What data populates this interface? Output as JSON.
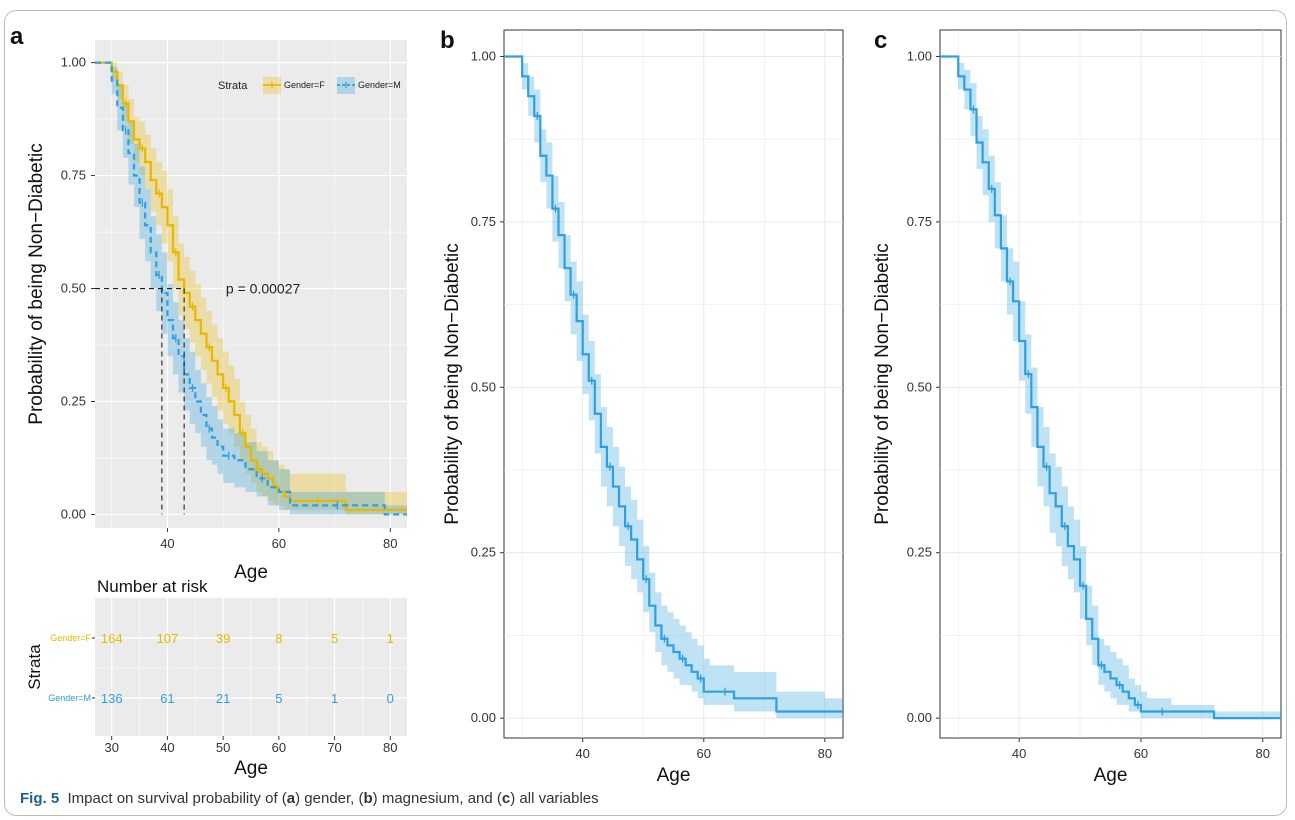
{
  "caption": {
    "fig": "Fig. 5",
    "p1": "Impact on survival probability of (",
    "a": "a",
    "p2": ") gender, (",
    "b": "b",
    "p3": ") magnesium, and (",
    "c": "c",
    "p4": ") all variables"
  },
  "panels": {
    "a": {
      "letter": "a"
    },
    "b": {
      "letter": "b"
    },
    "c": {
      "letter": "c"
    }
  },
  "risk_table": {
    "title": "Number at risk",
    "ylabel": "Strata",
    "xlabel": "Age",
    "x_ticks": [
      30,
      40,
      50,
      60,
      70,
      80
    ],
    "x_tick_labels": [
      "30",
      "40",
      "50",
      "60",
      "70",
      "80"
    ],
    "rows": [
      {
        "label": "Gender=F",
        "color": "#E7B800",
        "values": [
          "164",
          "107",
          "39",
          "8",
          "5",
          "1"
        ]
      },
      {
        "label": "Gender=M",
        "color": "#2E9FDF",
        "values": [
          "136",
          "61",
          "21",
          "5",
          "1",
          "0"
        ]
      }
    ]
  },
  "chart_data": [
    {
      "type": "line",
      "panel": "a",
      "xlabel": "Age",
      "ylabel": "Probability of being Non−Diabetic",
      "xlim": [
        27,
        83
      ],
      "ylim": [
        -0.03,
        1.05
      ],
      "x_ticks": [
        40,
        60,
        80
      ],
      "x_tick_labels": [
        "40",
        "60",
        "80"
      ],
      "y_ticks": [
        0,
        0.25,
        0.5,
        0.75,
        1
      ],
      "y_tick_labels": [
        "0.00",
        "0.25",
        "0.50",
        "0.75",
        "1.00"
      ],
      "background": "gray",
      "grid": true,
      "legend": {
        "title": "Strata",
        "position": "top-right",
        "entries": [
          "Gender=F",
          "Gender=M"
        ]
      },
      "annotation": "p = 0.00027",
      "median_lines": [
        39,
        43
      ],
      "series": [
        {
          "name": "Gender=F",
          "color": "#E7B800",
          "x": [
            27,
            30,
            31,
            32,
            33,
            34,
            35,
            36,
            37,
            38,
            39,
            40,
            41,
            42,
            43,
            44,
            45,
            46,
            47,
            48,
            49,
            50,
            51,
            52,
            53,
            54,
            55,
            56,
            57,
            58,
            59,
            60,
            61,
            62,
            72,
            83
          ],
          "y": [
            1.0,
            0.98,
            0.95,
            0.91,
            0.87,
            0.83,
            0.81,
            0.78,
            0.74,
            0.71,
            0.68,
            0.64,
            0.58,
            0.52,
            0.49,
            0.46,
            0.43,
            0.4,
            0.37,
            0.34,
            0.31,
            0.28,
            0.25,
            0.22,
            0.18,
            0.15,
            0.12,
            0.1,
            0.09,
            0.08,
            0.06,
            0.05,
            0.04,
            0.03,
            0.01,
            0.01
          ],
          "lower": [
            1.0,
            0.96,
            0.92,
            0.87,
            0.82,
            0.78,
            0.75,
            0.72,
            0.67,
            0.64,
            0.6,
            0.56,
            0.5,
            0.44,
            0.41,
            0.38,
            0.35,
            0.32,
            0.29,
            0.26,
            0.23,
            0.2,
            0.18,
            0.15,
            0.12,
            0.09,
            0.07,
            0.05,
            0.04,
            0.03,
            0.02,
            0.02,
            0.01,
            0.01,
            0.0,
            0.0
          ],
          "upper": [
            1.0,
            1.0,
            0.98,
            0.95,
            0.92,
            0.88,
            0.87,
            0.84,
            0.81,
            0.78,
            0.76,
            0.72,
            0.66,
            0.6,
            0.57,
            0.54,
            0.51,
            0.48,
            0.45,
            0.42,
            0.39,
            0.36,
            0.33,
            0.3,
            0.25,
            0.22,
            0.19,
            0.16,
            0.15,
            0.14,
            0.12,
            0.11,
            0.1,
            0.09,
            0.05,
            0.05
          ]
        },
        {
          "name": "Gender=M",
          "color": "#2E9FDF",
          "dashed": true,
          "x": [
            27,
            30,
            31,
            32,
            33,
            34,
            35,
            36,
            37,
            38,
            39,
            40,
            41,
            42,
            43,
            44,
            45,
            46,
            47,
            48,
            49,
            50,
            52,
            54,
            56,
            58,
            60,
            62,
            79,
            83
          ],
          "y": [
            1.0,
            0.96,
            0.9,
            0.85,
            0.8,
            0.75,
            0.69,
            0.64,
            0.58,
            0.53,
            0.49,
            0.43,
            0.39,
            0.35,
            0.31,
            0.28,
            0.25,
            0.22,
            0.19,
            0.17,
            0.15,
            0.13,
            0.12,
            0.1,
            0.08,
            0.06,
            0.05,
            0.02,
            0.0,
            0.0
          ],
          "lower": [
            1.0,
            0.93,
            0.85,
            0.79,
            0.73,
            0.68,
            0.61,
            0.56,
            0.5,
            0.45,
            0.4,
            0.35,
            0.31,
            0.27,
            0.23,
            0.2,
            0.18,
            0.15,
            0.12,
            0.11,
            0.09,
            0.07,
            0.06,
            0.05,
            0.04,
            0.02,
            0.01,
            0.0,
            0.0,
            0.0
          ],
          "upper": [
            1.0,
            0.99,
            0.95,
            0.91,
            0.87,
            0.82,
            0.77,
            0.72,
            0.66,
            0.62,
            0.58,
            0.51,
            0.47,
            0.43,
            0.39,
            0.36,
            0.32,
            0.29,
            0.26,
            0.24,
            0.21,
            0.19,
            0.18,
            0.16,
            0.14,
            0.12,
            0.1,
            0.05,
            0.02,
            0.02
          ]
        }
      ]
    },
    {
      "type": "line",
      "panel": "b",
      "xlabel": "Age",
      "ylabel": "Probability of being Non−Diabetic",
      "xlim": [
        27,
        83
      ],
      "ylim": [
        -0.03,
        1.04
      ],
      "x_ticks": [
        40,
        60,
        80
      ],
      "x_tick_labels": [
        "40",
        "60",
        "80"
      ],
      "y_ticks": [
        0,
        0.25,
        0.5,
        0.75,
        1
      ],
      "y_tick_labels": [
        "0.00",
        "0.25",
        "0.50",
        "0.75",
        "1.00"
      ],
      "background": "white",
      "grid": true,
      "series": [
        {
          "color": "#2E9FDF",
          "x": [
            27,
            30,
            31,
            32,
            33,
            34,
            35,
            36,
            37,
            38,
            39,
            40,
            41,
            42,
            43,
            44,
            45,
            46,
            47,
            48,
            49,
            50,
            51,
            52,
            53,
            54,
            55,
            56,
            57,
            58,
            59,
            60,
            61,
            62,
            65,
            72,
            80,
            83
          ],
          "y": [
            1.0,
            0.97,
            0.94,
            0.91,
            0.85,
            0.82,
            0.77,
            0.73,
            0.68,
            0.64,
            0.6,
            0.55,
            0.51,
            0.46,
            0.41,
            0.38,
            0.35,
            0.32,
            0.29,
            0.27,
            0.24,
            0.21,
            0.17,
            0.14,
            0.12,
            0.11,
            0.1,
            0.09,
            0.08,
            0.07,
            0.06,
            0.04,
            0.04,
            0.04,
            0.03,
            0.01,
            0.01,
            0.01
          ],
          "lower": [
            1.0,
            0.95,
            0.91,
            0.87,
            0.81,
            0.77,
            0.72,
            0.68,
            0.63,
            0.58,
            0.54,
            0.49,
            0.45,
            0.4,
            0.35,
            0.32,
            0.29,
            0.26,
            0.23,
            0.21,
            0.19,
            0.16,
            0.13,
            0.1,
            0.08,
            0.07,
            0.06,
            0.05,
            0.05,
            0.04,
            0.03,
            0.02,
            0.02,
            0.02,
            0.01,
            0.0,
            0.0,
            0.0
          ],
          "upper": [
            1.0,
            0.99,
            0.97,
            0.95,
            0.89,
            0.87,
            0.82,
            0.78,
            0.73,
            0.69,
            0.66,
            0.61,
            0.57,
            0.52,
            0.47,
            0.44,
            0.41,
            0.38,
            0.35,
            0.33,
            0.3,
            0.26,
            0.22,
            0.19,
            0.17,
            0.16,
            0.15,
            0.14,
            0.13,
            0.12,
            0.11,
            0.09,
            0.08,
            0.08,
            0.07,
            0.04,
            0.03,
            0.03
          ]
        }
      ]
    },
    {
      "type": "line",
      "panel": "c",
      "xlabel": "Age",
      "ylabel": "Probability of being Non−Diabetic",
      "xlim": [
        27,
        83
      ],
      "ylim": [
        -0.03,
        1.04
      ],
      "x_ticks": [
        40,
        60,
        80
      ],
      "x_tick_labels": [
        "40",
        "60",
        "80"
      ],
      "y_ticks": [
        0,
        0.25,
        0.5,
        0.75,
        1
      ],
      "y_tick_labels": [
        "0.00",
        "0.25",
        "0.50",
        "0.75",
        "1.00"
      ],
      "background": "white",
      "grid": true,
      "series": [
        {
          "color": "#2E9FDF",
          "x": [
            27,
            30,
            31,
            32,
            33,
            34,
            35,
            36,
            37,
            38,
            39,
            40,
            41,
            42,
            43,
            44,
            45,
            46,
            47,
            48,
            49,
            50,
            51,
            52,
            53,
            54,
            55,
            56,
            57,
            58,
            59,
            60,
            61,
            62,
            65,
            70,
            72,
            83
          ],
          "y": [
            1.0,
            0.97,
            0.95,
            0.92,
            0.87,
            0.84,
            0.8,
            0.76,
            0.71,
            0.66,
            0.63,
            0.57,
            0.52,
            0.47,
            0.41,
            0.38,
            0.34,
            0.32,
            0.29,
            0.26,
            0.24,
            0.2,
            0.15,
            0.12,
            0.08,
            0.07,
            0.06,
            0.05,
            0.04,
            0.03,
            0.02,
            0.01,
            0.01,
            0.01,
            0.01,
            0.01,
            0.0,
            0.0
          ],
          "lower": [
            1.0,
            0.95,
            0.92,
            0.88,
            0.83,
            0.79,
            0.75,
            0.71,
            0.66,
            0.61,
            0.57,
            0.51,
            0.46,
            0.41,
            0.35,
            0.32,
            0.28,
            0.26,
            0.23,
            0.21,
            0.19,
            0.15,
            0.11,
            0.08,
            0.05,
            0.04,
            0.03,
            0.02,
            0.02,
            0.01,
            0.01,
            0.0,
            0.0,
            0.0,
            0.0,
            0.0,
            0.0,
            0.0
          ],
          "upper": [
            1.0,
            0.99,
            0.98,
            0.96,
            0.91,
            0.89,
            0.85,
            0.81,
            0.76,
            0.71,
            0.69,
            0.63,
            0.58,
            0.53,
            0.47,
            0.44,
            0.4,
            0.38,
            0.35,
            0.32,
            0.3,
            0.26,
            0.2,
            0.17,
            0.12,
            0.11,
            0.1,
            0.09,
            0.08,
            0.06,
            0.05,
            0.04,
            0.03,
            0.03,
            0.02,
            0.02,
            0.01,
            0.01
          ]
        }
      ]
    }
  ]
}
